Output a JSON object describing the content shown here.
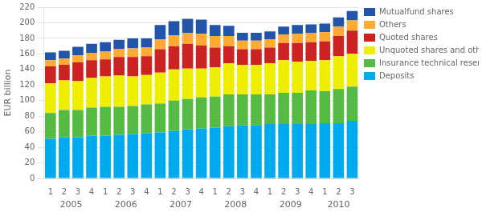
{
  "chart_data": {
    "type": "bar",
    "stacked": true,
    "y_label": "EUR billion",
    "categories": [
      "1",
      "2",
      "3",
      "4",
      "1",
      "2",
      "3",
      "4",
      "1",
      "2",
      "3",
      "4",
      "1",
      "2",
      "3",
      "4",
      "1",
      "2",
      "3",
      "4",
      "1",
      "2",
      "3"
    ],
    "x_groups": [
      {
        "label": "2005",
        "size": 4
      },
      {
        "label": "2006",
        "size": 4
      },
      {
        "label": "2007",
        "size": 4
      },
      {
        "label": "2008",
        "size": 4
      },
      {
        "label": "2009",
        "size": 4
      },
      {
        "label": "2010",
        "size": 3
      }
    ],
    "series": [
      {
        "name": "Deposits",
        "color": "#00AAEE",
        "values": [
          51,
          53,
          53,
          55,
          55,
          56,
          57,
          58,
          59,
          61,
          63,
          64,
          65,
          67,
          68,
          68,
          70,
          70,
          70,
          70,
          71,
          71,
          74
        ]
      },
      {
        "name": "Insurance technical reserves",
        "color": "#55BB44",
        "values": [
          33,
          35,
          35,
          36,
          37,
          36,
          36,
          37,
          37,
          39,
          39,
          40,
          40,
          41,
          40,
          40,
          38,
          40,
          40,
          43,
          41,
          44,
          44
        ]
      },
      {
        "name": "Unquoted shares and other equity",
        "color": "#EEEE00",
        "values": [
          38,
          38,
          37,
          38,
          39,
          40,
          38,
          38,
          40,
          40,
          39,
          37,
          38,
          40,
          38,
          38,
          40,
          42,
          40,
          38,
          40,
          42,
          42
        ]
      },
      {
        "name": "Quoted shares",
        "color": "#CC2222",
        "values": [
          22,
          20,
          24,
          23,
          22,
          24,
          25,
          24,
          30,
          30,
          32,
          30,
          25,
          22,
          20,
          20,
          20,
          22,
          24,
          24,
          24,
          26,
          30
        ]
      },
      {
        "name": "Others",
        "color": "#FFAA33",
        "values": [
          8,
          8,
          9,
          9,
          10,
          10,
          11,
          11,
          13,
          14,
          14,
          15,
          15,
          13,
          11,
          11,
          11,
          11,
          12,
          12,
          12,
          12,
          13
        ]
      },
      {
        "name": "Mutualfund shares",
        "color": "#2255AA",
        "values": [
          10,
          10,
          11,
          12,
          12,
          12,
          13,
          12,
          18,
          18,
          18,
          18,
          14,
          13,
          10,
          10,
          10,
          10,
          11,
          11,
          11,
          12,
          12
        ]
      }
    ],
    "ylim": [
      0,
      220
    ],
    "yticks": [
      0,
      20,
      40,
      60,
      80,
      100,
      120,
      140,
      160,
      180,
      200,
      220
    ],
    "grid": true,
    "legend": "right"
  }
}
